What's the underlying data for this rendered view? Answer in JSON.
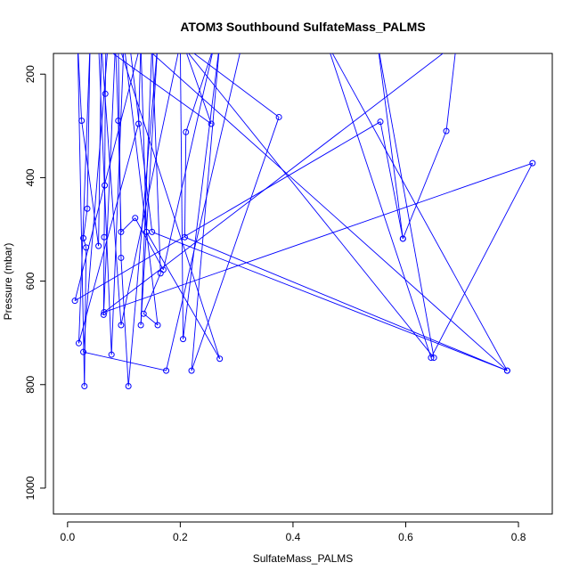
{
  "chart_data": {
    "type": "line",
    "title": "ATOM3 Southbound SulfateMass_PALMS",
    "xlabel": "SulfateMass_PALMS",
    "ylabel": "Pressure (mbar)",
    "xlim": [
      -0.025,
      0.86
    ],
    "ylim": [
      1050,
      160
    ],
    "y_reversed": true,
    "x_ticks": [
      0.0,
      0.2,
      0.4,
      0.6,
      0.8
    ],
    "x_tick_labels": [
      "0.0",
      "0.2",
      "0.4",
      "0.6",
      "0.8"
    ],
    "y_ticks": [
      200,
      400,
      600,
      800,
      1000
    ],
    "y_tick_labels": [
      "200",
      "400",
      "600",
      "800",
      "1000"
    ],
    "grid": false,
    "legend": "none",
    "series_color": "#0000ff",
    "series": [
      {
        "points": [
          [
            0.068,
            145
          ],
          [
            0.067,
            238
          ],
          [
            0.066,
            415
          ],
          [
            0.065,
            515
          ],
          [
            0.064,
            665
          ],
          [
            0.085,
            140
          ],
          [
            0.09,
            290
          ],
          [
            0.095,
            505
          ],
          [
            0.12,
            478
          ],
          [
            0.17,
            578
          ],
          [
            0.26,
            145
          ],
          [
            0.21,
            312
          ],
          [
            0.208,
            515
          ],
          [
            0.78,
            773
          ],
          [
            0.13,
            140
          ],
          [
            0.126,
            296
          ],
          [
            0.02,
            720
          ],
          [
            0.04,
            140
          ],
          [
            0.035,
            460
          ],
          [
            0.028,
            517
          ],
          [
            0.033,
            535
          ],
          [
            0.03,
            803
          ],
          [
            0.018,
            140
          ],
          [
            0.025,
            290
          ],
          [
            0.055,
            532
          ],
          [
            0.06,
            140
          ],
          [
            0.095,
            685
          ],
          [
            0.2,
            140
          ],
          [
            0.375,
            283
          ],
          [
            0.22,
            773
          ],
          [
            0.27,
            140
          ],
          [
            0.205,
            712
          ],
          [
            0.2,
            140
          ],
          [
            0.65,
            748
          ],
          [
            0.55,
            140
          ],
          [
            0.595,
            518
          ],
          [
            0.555,
            292
          ],
          [
            0.013,
            638
          ],
          [
            0.13,
            140
          ],
          [
            0.14,
            505
          ],
          [
            0.27,
            750
          ],
          [
            0.09,
            140
          ],
          [
            0.095,
            555
          ],
          [
            0.108,
            803
          ],
          [
            0.16,
            140
          ],
          [
            0.13,
            685
          ],
          [
            0.15,
            140
          ],
          [
            0.165,
            585
          ],
          [
            0.135,
            663
          ],
          [
            0.16,
            685
          ],
          [
            0.1,
            140
          ],
          [
            0.078,
            742
          ],
          [
            0.055,
            140
          ],
          [
            0.255,
            296
          ],
          [
            0.205,
            140
          ],
          [
            0.31,
            140
          ],
          [
            0.175,
            773
          ],
          [
            0.028,
            737
          ],
          [
            0.072,
            140
          ],
          [
            0.11,
            140
          ],
          [
            0.15,
            505
          ],
          [
            0.78,
            773
          ],
          [
            0.46,
            140
          ],
          [
            0.645,
            748
          ],
          [
            0.825,
            372
          ],
          [
            0.065,
            660
          ],
          [
            0.69,
            140
          ],
          [
            0.672,
            310
          ],
          [
            0.595,
            518
          ]
        ]
      }
    ]
  }
}
